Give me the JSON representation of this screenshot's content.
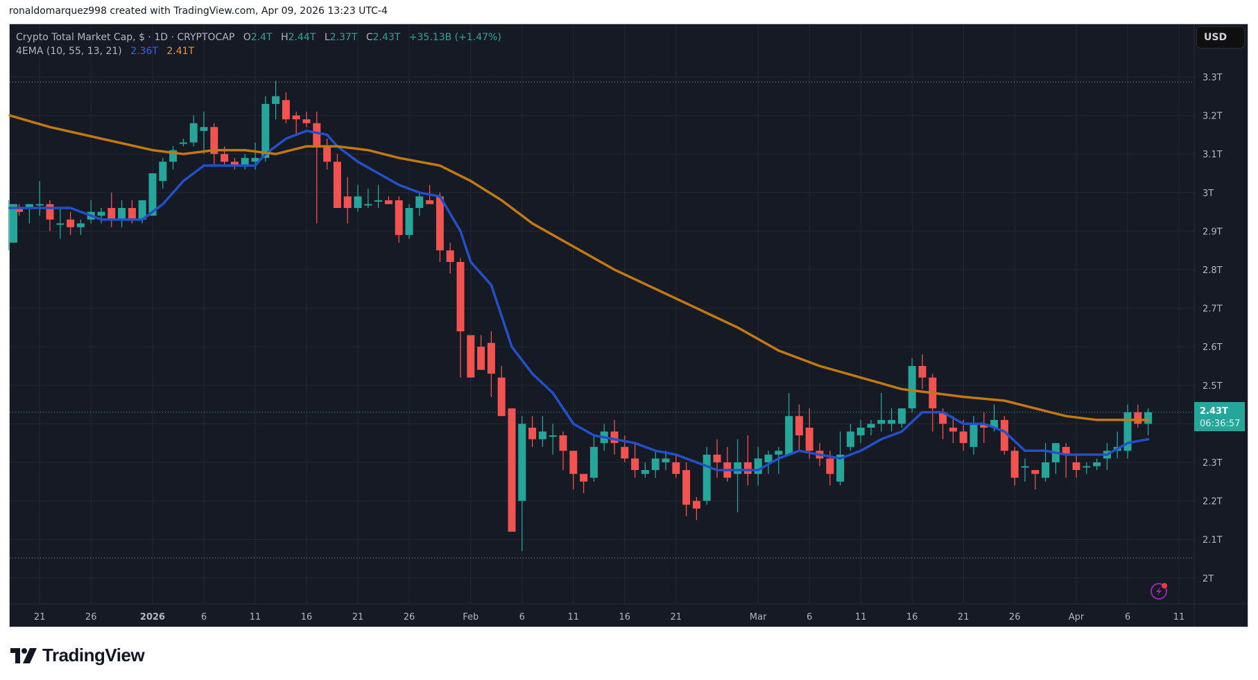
{
  "credit": "ronaldomarquez998 created with TradingView.com, Apr 09, 2026 13:23 UTC-4",
  "legend": {
    "symbol": "Crypto Total Market Cap, $ · 1D · CRYPTOCAP",
    "o_label": "O",
    "o": "2.4T",
    "h_label": "H",
    "h": "2.44T",
    "l_label": "L",
    "l": "2.37T",
    "c_label": "C",
    "c": "2.43T",
    "change": "+35.13B (+1.47%)",
    "indicator": "4EMA (10, 55, 13, 21)",
    "ema_fast": "2.36T",
    "ema_slow": "2.41T"
  },
  "currency_button": "USD",
  "last_price_label": {
    "price": "2.43T",
    "countdown": "06:36:57"
  },
  "logo_text": "TradingView",
  "colors": {
    "background": "#161a25",
    "up": "#26a69a",
    "down": "#f05350",
    "ema_fast": "#2350c8",
    "ema_slow": "#c2790f",
    "grid": "#242833",
    "axis_text": "#b2b5be",
    "alert_icon": "#9c27b0"
  },
  "chart_data": {
    "type": "candlestick",
    "title": "Crypto Total Market Cap, $ · 1D · CRYPTOCAP",
    "xlabel": "",
    "ylabel": "USD",
    "ylim": [
      1.93,
      3.42
    ],
    "grid": true,
    "y_ticks": [
      "3.3T",
      "3.2T",
      "3.1T",
      "3T",
      "2.9T",
      "2.8T",
      "2.7T",
      "2.6T",
      "2.5T",
      "2.4T",
      "2.3T",
      "2.2T",
      "2.1T",
      "2T"
    ],
    "x_ticks": [
      {
        "label": "21",
        "day": -11
      },
      {
        "label": "26",
        "day": -6
      },
      {
        "label": "2026",
        "day": 0,
        "bold": true
      },
      {
        "label": "6",
        "day": 5
      },
      {
        "label": "11",
        "day": 10
      },
      {
        "label": "16",
        "day": 15
      },
      {
        "label": "21",
        "day": 20
      },
      {
        "label": "26",
        "day": 25
      },
      {
        "label": "Feb",
        "day": 31
      },
      {
        "label": "6",
        "day": 36
      },
      {
        "label": "11",
        "day": 41
      },
      {
        "label": "16",
        "day": 46
      },
      {
        "label": "21",
        "day": 51
      },
      {
        "label": "Mar",
        "day": 59
      },
      {
        "label": "6",
        "day": 64
      },
      {
        "label": "11",
        "day": 69
      },
      {
        "label": "16",
        "day": 74
      },
      {
        "label": "21",
        "day": 79
      },
      {
        "label": "26",
        "day": 84
      },
      {
        "label": "Apr",
        "day": 90
      },
      {
        "label": "6",
        "day": 95
      },
      {
        "label": "11",
        "day": 100
      }
    ],
    "hi_line": 3.287,
    "lo_line": 2.052,
    "last_price": 2.43,
    "candles_note": "day = days since 2026-01-01; [day, open, high, low, close] in trillions USD",
    "candles": [
      [
        -15,
        2.91,
        2.93,
        2.85,
        2.87
      ],
      [
        -14,
        2.87,
        2.98,
        2.85,
        2.97
      ],
      [
        -13,
        2.96,
        2.97,
        2.94,
        2.95
      ],
      [
        -12,
        2.96,
        2.97,
        2.92,
        2.97
      ],
      [
        -11,
        2.97,
        3.03,
        2.94,
        2.97
      ],
      [
        -10,
        2.97,
        2.98,
        2.9,
        2.93
      ],
      [
        -9,
        2.92,
        2.96,
        2.88,
        2.92
      ],
      [
        -8,
        2.93,
        2.95,
        2.89,
        2.91
      ],
      [
        -7,
        2.91,
        2.93,
        2.89,
        2.92
      ],
      [
        -6,
        2.93,
        2.98,
        2.92,
        2.95
      ],
      [
        -5,
        2.94,
        2.96,
        2.92,
        2.95
      ],
      [
        -4,
        2.96,
        3.0,
        2.91,
        2.93
      ],
      [
        -3,
        2.93,
        2.98,
        2.91,
        2.96
      ],
      [
        -2,
        2.96,
        2.98,
        2.92,
        2.93
      ],
      [
        -1,
        2.93,
        2.97,
        2.92,
        2.98
      ],
      [
        0,
        2.94,
        3.05,
        2.94,
        3.05
      ],
      [
        1,
        3.03,
        3.09,
        3.01,
        3.08
      ],
      [
        2,
        3.08,
        3.12,
        3.06,
        3.11
      ],
      [
        3,
        3.13,
        3.14,
        3.12,
        3.13
      ],
      [
        4,
        3.13,
        3.2,
        3.12,
        3.18
      ],
      [
        5,
        3.16,
        3.21,
        3.1,
        3.17
      ],
      [
        6,
        3.17,
        3.18,
        3.07,
        3.1
      ],
      [
        7,
        3.1,
        3.12,
        3.07,
        3.08
      ],
      [
        8,
        3.08,
        3.09,
        3.06,
        3.07
      ],
      [
        9,
        3.07,
        3.1,
        3.06,
        3.09
      ],
      [
        10,
        3.08,
        3.13,
        3.06,
        3.09
      ],
      [
        11,
        3.09,
        3.25,
        3.08,
        3.23
      ],
      [
        12,
        3.23,
        3.29,
        3.19,
        3.25
      ],
      [
        13,
        3.24,
        3.26,
        3.18,
        3.19
      ],
      [
        14,
        3.2,
        3.21,
        3.15,
        3.19
      ],
      [
        15,
        3.19,
        3.21,
        3.17,
        3.18
      ],
      [
        16,
        3.18,
        3.21,
        2.92,
        3.12
      ],
      [
        17,
        3.12,
        3.14,
        3.06,
        3.08
      ],
      [
        18,
        3.08,
        3.1,
        3.03,
        2.96
      ],
      [
        19,
        2.99,
        3.04,
        2.92,
        2.96
      ],
      [
        20,
        2.96,
        3.02,
        2.95,
        2.99
      ],
      [
        21,
        2.97,
        3.01,
        2.96,
        2.97
      ],
      [
        22,
        2.98,
        3.02,
        2.96,
        2.98
      ],
      [
        23,
        2.98,
        2.99,
        2.97,
        2.97
      ],
      [
        24,
        2.98,
        2.99,
        2.87,
        2.89
      ],
      [
        25,
        2.89,
        2.97,
        2.88,
        2.96
      ],
      [
        26,
        2.96,
        3.0,
        2.94,
        2.99
      ],
      [
        27,
        2.98,
        3.02,
        2.97,
        2.97
      ],
      [
        28,
        2.99,
        3.0,
        2.82,
        2.85
      ],
      [
        29,
        2.85,
        2.87,
        2.79,
        2.82
      ],
      [
        30,
        2.82,
        2.83,
        2.52,
        2.64
      ],
      [
        31,
        2.63,
        2.6,
        2.55,
        2.52
      ],
      [
        32,
        2.6,
        2.63,
        2.57,
        2.54
      ],
      [
        33,
        2.61,
        2.64,
        2.47,
        2.53
      ],
      [
        34,
        2.52,
        2.55,
        2.43,
        2.42
      ],
      [
        35,
        2.44,
        2.44,
        2.13,
        2.12
      ],
      [
        36,
        2.2,
        2.42,
        2.07,
        2.4
      ],
      [
        37,
        2.39,
        2.42,
        2.34,
        2.36
      ],
      [
        38,
        2.36,
        2.42,
        2.34,
        2.38
      ],
      [
        39,
        2.37,
        2.4,
        2.32,
        2.37
      ],
      [
        40,
        2.37,
        2.38,
        2.28,
        2.33
      ],
      [
        41,
        2.33,
        2.32,
        2.23,
        2.27
      ],
      [
        42,
        2.27,
        2.26,
        2.22,
        2.25
      ],
      [
        43,
        2.26,
        2.37,
        2.25,
        2.34
      ],
      [
        44,
        2.35,
        2.4,
        2.33,
        2.38
      ],
      [
        45,
        2.38,
        2.41,
        2.32,
        2.35
      ],
      [
        46,
        2.34,
        2.37,
        2.3,
        2.31
      ],
      [
        47,
        2.31,
        2.35,
        2.26,
        2.28
      ],
      [
        48,
        2.27,
        2.3,
        2.26,
        2.28
      ],
      [
        49,
        2.28,
        2.33,
        2.26,
        2.31
      ],
      [
        50,
        2.3,
        2.33,
        2.28,
        2.31
      ],
      [
        51,
        2.3,
        2.32,
        2.26,
        2.27
      ],
      [
        52,
        2.28,
        2.3,
        2.16,
        2.19
      ],
      [
        53,
        2.2,
        2.21,
        2.15,
        2.18
      ],
      [
        54,
        2.2,
        2.34,
        2.19,
        2.32
      ],
      [
        55,
        2.32,
        2.36,
        2.26,
        2.3
      ],
      [
        56,
        2.3,
        2.34,
        2.25,
        2.26
      ],
      [
        57,
        2.27,
        2.36,
        2.17,
        2.3
      ],
      [
        58,
        2.3,
        2.37,
        2.24,
        2.27
      ],
      [
        59,
        2.27,
        2.34,
        2.24,
        2.31
      ],
      [
        60,
        2.3,
        2.33,
        2.27,
        2.32
      ],
      [
        61,
        2.32,
        2.34,
        2.27,
        2.33
      ],
      [
        62,
        2.32,
        2.48,
        2.32,
        2.42
      ],
      [
        63,
        2.42,
        2.45,
        2.33,
        2.37
      ],
      [
        64,
        2.39,
        2.44,
        2.31,
        2.33
      ],
      [
        65,
        2.33,
        2.35,
        2.29,
        2.31
      ],
      [
        66,
        2.31,
        2.33,
        2.24,
        2.27
      ],
      [
        67,
        2.25,
        2.38,
        2.24,
        2.32
      ],
      [
        68,
        2.34,
        2.4,
        2.33,
        2.38
      ],
      [
        69,
        2.37,
        2.41,
        2.35,
        2.39
      ],
      [
        70,
        2.39,
        2.41,
        2.37,
        2.4
      ],
      [
        71,
        2.4,
        2.48,
        2.38,
        2.41
      ],
      [
        72,
        2.4,
        2.44,
        2.38,
        2.41
      ],
      [
        73,
        2.4,
        2.44,
        2.39,
        2.44
      ],
      [
        74,
        2.44,
        2.57,
        2.43,
        2.55
      ],
      [
        75,
        2.55,
        2.58,
        2.49,
        2.52
      ],
      [
        76,
        2.52,
        2.53,
        2.38,
        2.44
      ],
      [
        77,
        2.43,
        2.44,
        2.36,
        2.4
      ],
      [
        78,
        2.39,
        2.42,
        2.35,
        2.38
      ],
      [
        79,
        2.38,
        2.41,
        2.33,
        2.35
      ],
      [
        80,
        2.34,
        2.42,
        2.32,
        2.4
      ],
      [
        81,
        2.4,
        2.43,
        2.35,
        2.39
      ],
      [
        82,
        2.39,
        2.45,
        2.38,
        2.41
      ],
      [
        83,
        2.41,
        2.42,
        2.32,
        2.33
      ],
      [
        84,
        2.33,
        2.34,
        2.24,
        2.26
      ],
      [
        85,
        2.29,
        2.31,
        2.25,
        2.29
      ],
      [
        86,
        2.28,
        2.26,
        2.23,
        2.27
      ],
      [
        87,
        2.26,
        2.35,
        2.25,
        2.3
      ],
      [
        88,
        2.3,
        2.34,
        2.27,
        2.35
      ],
      [
        89,
        2.34,
        2.35,
        2.26,
        2.32
      ],
      [
        90,
        2.3,
        2.32,
        2.26,
        2.28
      ],
      [
        91,
        2.29,
        2.3,
        2.27,
        2.29
      ],
      [
        92,
        2.29,
        2.31,
        2.28,
        2.3
      ],
      [
        93,
        2.31,
        2.35,
        2.28,
        2.33
      ],
      [
        94,
        2.33,
        2.38,
        2.31,
        2.34
      ],
      [
        95,
        2.33,
        2.45,
        2.31,
        2.43
      ],
      [
        96,
        2.43,
        2.45,
        2.39,
        2.4
      ],
      [
        97,
        2.4,
        2.44,
        2.37,
        2.43
      ]
    ],
    "series": [
      {
        "name": "EMA fast (blue)",
        "color": "#2350c8",
        "points": [
          [
            -15,
            2.96
          ],
          [
            -11,
            2.96
          ],
          [
            -8,
            2.96
          ],
          [
            -5,
            2.93
          ],
          [
            -3,
            2.93
          ],
          [
            -1,
            2.93
          ],
          [
            1,
            2.97
          ],
          [
            3,
            3.03
          ],
          [
            5,
            3.07
          ],
          [
            7,
            3.07
          ],
          [
            10,
            3.07
          ],
          [
            11,
            3.1
          ],
          [
            13,
            3.14
          ],
          [
            15,
            3.16
          ],
          [
            17,
            3.15
          ],
          [
            18,
            3.12
          ],
          [
            20,
            3.08
          ],
          [
            22,
            3.05
          ],
          [
            24,
            3.02
          ],
          [
            26,
            3.0
          ],
          [
            28,
            2.99
          ],
          [
            30,
            2.9
          ],
          [
            31,
            2.82
          ],
          [
            33,
            2.76
          ],
          [
            35,
            2.6
          ],
          [
            37,
            2.53
          ],
          [
            39,
            2.48
          ],
          [
            41,
            2.4
          ],
          [
            43,
            2.37
          ],
          [
            45,
            2.36
          ],
          [
            47,
            2.35
          ],
          [
            49,
            2.33
          ],
          [
            51,
            2.32
          ],
          [
            53,
            2.3
          ],
          [
            55,
            2.28
          ],
          [
            57,
            2.28
          ],
          [
            59,
            2.28
          ],
          [
            61,
            2.31
          ],
          [
            63,
            2.33
          ],
          [
            65,
            2.32
          ],
          [
            67,
            2.31
          ],
          [
            69,
            2.33
          ],
          [
            71,
            2.36
          ],
          [
            73,
            2.38
          ],
          [
            75,
            2.43
          ],
          [
            77,
            2.43
          ],
          [
            79,
            2.4
          ],
          [
            81,
            2.4
          ],
          [
            83,
            2.38
          ],
          [
            85,
            2.33
          ],
          [
            87,
            2.33
          ],
          [
            89,
            2.32
          ],
          [
            91,
            2.32
          ],
          [
            93,
            2.32
          ],
          [
            95,
            2.35
          ],
          [
            97,
            2.36
          ]
        ]
      },
      {
        "name": "EMA slow (orange)",
        "color": "#c2790f",
        "points": [
          [
            -15,
            3.2
          ],
          [
            -10,
            3.17
          ],
          [
            -5,
            3.14
          ],
          [
            0,
            3.11
          ],
          [
            3,
            3.1
          ],
          [
            6,
            3.11
          ],
          [
            9,
            3.11
          ],
          [
            12,
            3.1
          ],
          [
            15,
            3.12
          ],
          [
            18,
            3.12
          ],
          [
            21,
            3.11
          ],
          [
            24,
            3.09
          ],
          [
            28,
            3.07
          ],
          [
            31,
            3.03
          ],
          [
            34,
            2.98
          ],
          [
            37,
            2.92
          ],
          [
            41,
            2.86
          ],
          [
            45,
            2.8
          ],
          [
            49,
            2.75
          ],
          [
            53,
            2.7
          ],
          [
            57,
            2.65
          ],
          [
            61,
            2.59
          ],
          [
            65,
            2.55
          ],
          [
            69,
            2.52
          ],
          [
            73,
            2.49
          ],
          [
            76,
            2.48
          ],
          [
            79,
            2.47
          ],
          [
            83,
            2.46
          ],
          [
            86,
            2.44
          ],
          [
            89,
            2.42
          ],
          [
            92,
            2.41
          ],
          [
            95,
            2.41
          ],
          [
            97,
            2.41
          ]
        ]
      }
    ]
  }
}
